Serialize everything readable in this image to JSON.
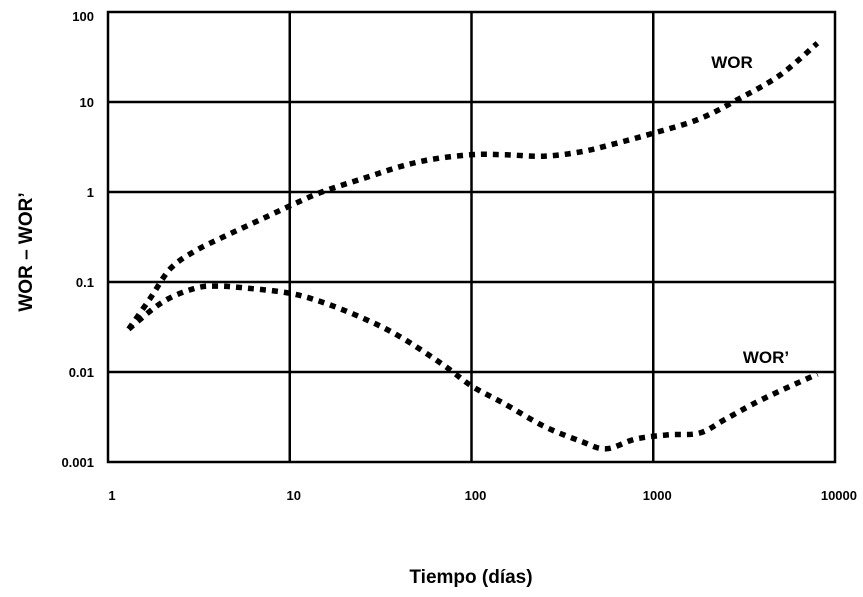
{
  "chart_data": {
    "type": "line",
    "title": "",
    "xlabel": "Tiempo (días)",
    "ylabel": "WOR – WOR’",
    "xscale": "log",
    "yscale": "log",
    "xlim": [
      1,
      10000
    ],
    "ylim": [
      0.001,
      100
    ],
    "grid": true,
    "x_ticks": [
      1,
      10,
      100,
      1000,
      10000
    ],
    "x_tick_labels": [
      "1",
      "10",
      "100",
      "1000",
      "10000"
    ],
    "y_ticks": [
      0.001,
      0.01,
      0.1,
      1,
      10,
      100
    ],
    "y_tick_labels": [
      "0.001",
      "0.01",
      "0.1",
      "1",
      "10",
      "100"
    ],
    "series": [
      {
        "name": "WOR",
        "style": "dotted",
        "color": "#000000",
        "x": [
          1.3,
          1.7,
          2.2,
          3,
          4.5,
          7,
          10,
          15,
          25,
          40,
          60,
          100,
          150,
          250,
          400,
          600,
          1000,
          1800,
          3000,
          5000,
          8000
        ],
        "y": [
          0.03,
          0.065,
          0.14,
          0.22,
          0.33,
          0.5,
          0.7,
          1.0,
          1.4,
          1.9,
          2.3,
          2.6,
          2.6,
          2.5,
          2.8,
          3.4,
          4.5,
          6.5,
          11,
          20,
          45
        ]
      },
      {
        "name": "WOR’",
        "style": "dotted",
        "color": "#000000",
        "x": [
          1.3,
          2,
          3,
          4,
          6,
          10,
          15,
          25,
          40,
          70,
          100,
          150,
          250,
          400,
          550,
          800,
          1200,
          1800,
          2500,
          4000,
          8000
        ],
        "y": [
          0.03,
          0.06,
          0.085,
          0.09,
          0.085,
          0.075,
          0.06,
          0.04,
          0.025,
          0.012,
          0.007,
          0.0045,
          0.0025,
          0.0017,
          0.0014,
          0.0018,
          0.002,
          0.0021,
          0.003,
          0.005,
          0.0095
        ]
      }
    ]
  }
}
